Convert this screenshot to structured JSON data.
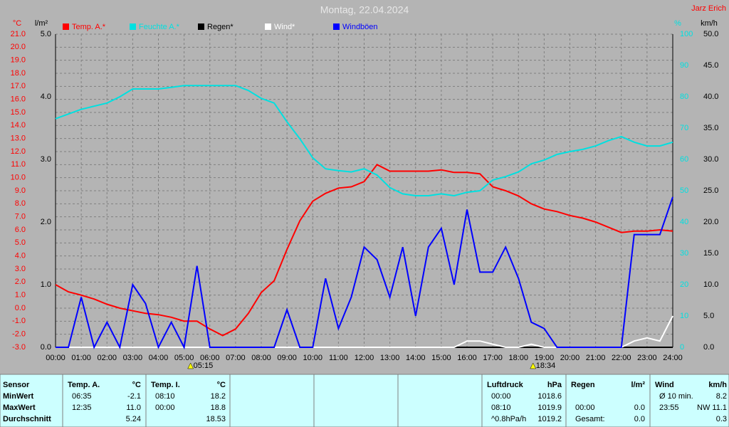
{
  "chart_data": {
    "type": "line",
    "title": "Montag, 22.04.2024",
    "author": "Jarz Erich",
    "ylabel": "°C",
    "y2label": "l/m²",
    "y3label": "%",
    "y4label": "km/h",
    "xlim": [
      0,
      24
    ],
    "xticks": [
      {
        "value": 0,
        "label": "00:00"
      },
      {
        "value": 1,
        "label": "01:00"
      },
      {
        "value": 2,
        "label": "02:00"
      },
      {
        "value": 3,
        "label": "03:00"
      },
      {
        "value": 4,
        "label": "04:00"
      },
      {
        "value": 5,
        "label": "05:00"
      },
      {
        "value": 6,
        "label": "06:00"
      },
      {
        "value": 7,
        "label": "07:00"
      },
      {
        "value": 8,
        "label": "08:00"
      },
      {
        "value": 9,
        "label": "09:00"
      },
      {
        "value": 10,
        "label": "10:00"
      },
      {
        "value": 11,
        "label": "11:00"
      },
      {
        "value": 12,
        "label": "12:00"
      },
      {
        "value": 13,
        "label": "13:00"
      },
      {
        "value": 14,
        "label": "14:00"
      },
      {
        "value": 15,
        "label": "15:00"
      },
      {
        "value": 16,
        "label": "16:00"
      },
      {
        "value": 17,
        "label": "17:00"
      },
      {
        "value": 18,
        "label": "18:00"
      },
      {
        "value": 19,
        "label": "19:00"
      },
      {
        "value": 20,
        "label": "20:00"
      },
      {
        "value": 21,
        "label": "21:00"
      },
      {
        "value": 22,
        "label": "22:00"
      },
      {
        "value": 23,
        "label": "23:00"
      },
      {
        "value": 24,
        "label": "24:00"
      }
    ],
    "ylim": [
      -3,
      21
    ],
    "yticks": [
      {
        "value": -3,
        "label": "-3.0"
      },
      {
        "value": -2,
        "label": "-2.0"
      },
      {
        "value": -1,
        "label": "-1.0"
      },
      {
        "value": 0,
        "label": "0.0"
      },
      {
        "value": 1,
        "label": "1.0"
      },
      {
        "value": 2,
        "label": "2.0"
      },
      {
        "value": 3,
        "label": "3.0"
      },
      {
        "value": 4,
        "label": "4.0"
      },
      {
        "value": 5,
        "label": "5.0"
      },
      {
        "value": 6,
        "label": "6.0"
      },
      {
        "value": 7,
        "label": "7.0"
      },
      {
        "value": 8,
        "label": "8.0"
      },
      {
        "value": 9,
        "label": "9.0"
      },
      {
        "value": 10,
        "label": "10.0"
      },
      {
        "value": 11,
        "label": "11.0"
      },
      {
        "value": 12,
        "label": "12.0"
      },
      {
        "value": 13,
        "label": "13.0"
      },
      {
        "value": 14,
        "label": "14.0"
      },
      {
        "value": 15,
        "label": "15.0"
      },
      {
        "value": 16,
        "label": "16.0"
      },
      {
        "value": 17,
        "label": "17.0"
      },
      {
        "value": 18,
        "label": "18.0"
      },
      {
        "value": 19,
        "label": "19.0"
      },
      {
        "value": 20,
        "label": "20.0"
      },
      {
        "value": 21,
        "label": "21.0"
      }
    ],
    "y2lim": [
      0,
      5
    ],
    "y2ticks": [
      {
        "value": 0,
        "label": "0.0"
      },
      {
        "value": 1,
        "label": "1.0"
      },
      {
        "value": 2,
        "label": "2.0"
      },
      {
        "value": 3,
        "label": "3.0"
      },
      {
        "value": 4,
        "label": "4.0"
      },
      {
        "value": 5,
        "label": "5.0"
      }
    ],
    "y3lim": [
      0,
      100
    ],
    "y3ticks": [
      0,
      10,
      20,
      30,
      40,
      50,
      60,
      70,
      80,
      90,
      100
    ],
    "y4lim": [
      0,
      50
    ],
    "y4ticks": [
      {
        "value": 0,
        "label": "0.0"
      },
      {
        "value": 5,
        "label": "5.0"
      },
      {
        "value": 10,
        "label": "10.0"
      },
      {
        "value": 15,
        "label": "15.0"
      },
      {
        "value": 20,
        "label": "20.0"
      },
      {
        "value": 25,
        "label": "25.0"
      },
      {
        "value": 30,
        "label": "30.0"
      },
      {
        "value": 35,
        "label": "35.0"
      },
      {
        "value": 40,
        "label": "40.0"
      },
      {
        "value": 45,
        "label": "45.0"
      },
      {
        "value": 50,
        "label": "50.0"
      }
    ],
    "grid": true,
    "x": [
      0,
      0.5,
      1,
      1.5,
      2,
      2.5,
      3,
      3.5,
      4,
      4.5,
      5,
      5.5,
      6,
      6.5,
      7,
      7.5,
      8,
      8.5,
      9,
      9.5,
      10,
      10.5,
      11,
      11.5,
      12,
      12.5,
      13,
      13.5,
      14,
      14.5,
      15,
      15.5,
      16,
      16.5,
      17,
      17.5,
      18,
      18.5,
      19,
      19.5,
      20,
      20.5,
      21,
      21.5,
      22,
      22.5,
      23,
      23.5,
      24
    ],
    "series": [
      {
        "name": "Temp. A.*",
        "color": "#ff0000",
        "axis": "y",
        "values": [
          1.8,
          1.25,
          1.0,
          0.7,
          0.3,
          0.0,
          -0.2,
          -0.4,
          -0.5,
          -0.7,
          -1.0,
          -1.0,
          -1.6,
          -2.1,
          -1.6,
          -0.4,
          1.2,
          2.1,
          4.5,
          6.7,
          8.2,
          8.8,
          9.2,
          9.3,
          9.7,
          11.0,
          10.5,
          10.5,
          10.5,
          10.5,
          10.6,
          10.4,
          10.4,
          10.3,
          9.3,
          9.0,
          8.6,
          8.0,
          7.6,
          7.4,
          7.1,
          6.9,
          6.6,
          6.2,
          5.8,
          5.9,
          5.9,
          6.0,
          5.9
        ]
      },
      {
        "name": "Feuchte A.*",
        "color": "#00e0e0",
        "axis": "y3",
        "values": [
          73,
          74.5,
          76,
          77,
          78,
          80,
          82.5,
          82.5,
          82.5,
          83,
          83.6,
          83.6,
          83.6,
          83.6,
          83.6,
          82,
          79.5,
          78,
          72,
          66.6,
          60.5,
          57,
          56.4,
          56,
          57,
          55,
          51,
          49,
          48.4,
          48.4,
          49,
          48.4,
          49.5,
          50,
          53.4,
          54.5,
          56,
          58.6,
          59.8,
          61.6,
          62.5,
          63.2,
          64.3,
          66,
          67.3,
          65.5,
          64.3,
          64.3,
          65.5
        ]
      },
      {
        "name": "Regen*",
        "color": "#000000",
        "axis": "y2",
        "values": [
          0,
          0,
          0,
          0,
          0,
          0,
          0,
          0,
          0,
          0,
          0,
          0,
          0,
          0,
          0,
          0,
          0,
          0,
          0,
          0,
          0,
          0,
          0,
          0,
          0,
          0,
          0,
          0,
          0,
          0,
          0,
          0,
          0,
          0,
          0,
          0,
          0,
          0,
          0,
          0,
          0,
          0,
          0,
          0,
          0,
          0,
          0,
          0,
          0
        ]
      },
      {
        "name": "Wind*",
        "color": "#ffffff",
        "axis": "y4",
        "values": [
          0,
          0,
          0,
          0,
          0,
          0,
          0,
          0,
          0,
          0,
          0,
          0,
          0,
          0,
          0,
          0,
          0,
          0,
          0,
          0,
          0,
          0,
          0,
          0,
          0,
          0,
          0,
          0,
          0,
          0,
          0,
          0,
          1,
          1,
          0.5,
          0,
          0,
          0.5,
          0,
          0,
          0,
          0,
          0,
          0,
          0,
          1,
          1.5,
          1,
          5
        ]
      },
      {
        "name": "Windböen",
        "color": "#0000ff",
        "axis": "y4",
        "values": [
          0,
          0,
          8,
          0,
          4,
          0,
          10,
          7,
          0,
          4,
          0,
          13,
          0,
          0,
          0,
          0,
          0,
          0,
          6,
          0,
          0,
          11,
          3,
          8,
          16,
          14,
          8,
          16,
          5,
          16,
          19,
          10,
          22,
          12,
          12,
          16,
          11,
          4,
          3,
          0,
          0,
          0,
          0,
          0,
          0,
          18,
          18,
          18,
          24
        ]
      }
    ],
    "annotations": [
      {
        "x": 5.25,
        "label": "05:15"
      },
      {
        "x": 18.5667,
        "label": "18:34"
      }
    ]
  },
  "table": {
    "blocks": [
      {
        "header": [
          "Sensor",
          null
        ],
        "rows": [
          [
            "MinWert",
            null
          ],
          [
            "MaxWert",
            null
          ],
          [
            "Durchschnitt",
            null
          ]
        ]
      },
      {
        "header": [
          "Temp. A.",
          "°C"
        ],
        "rows": [
          [
            "06:35",
            "-2.1"
          ],
          [
            "12:35",
            "11.0"
          ],
          [
            null,
            "5.24"
          ]
        ]
      },
      {
        "header": [
          "Temp. I.",
          "°C"
        ],
        "rows": [
          [
            "08:10",
            "18.2"
          ],
          [
            "00:00",
            "18.8"
          ],
          [
            null,
            "18.53"
          ]
        ]
      },
      {
        "header": [
          "Luftdruck",
          "hPa"
        ],
        "rows": [
          [
            "00:00",
            "1018.6"
          ],
          [
            "08:10",
            "1019.9"
          ],
          [
            "^0.8hPa/h",
            "1019.2"
          ]
        ]
      },
      {
        "header": [
          "Regen",
          "l/m²"
        ],
        "rows": [
          [
            null,
            null
          ],
          [
            "00:00",
            "0.0"
          ],
          [
            "Gesamt:",
            "0.0"
          ]
        ]
      },
      {
        "header": [
          "Wind",
          "km/h"
        ],
        "rows": [
          [
            "Ø 10 min.",
            "8.2"
          ],
          [
            "23:55",
            "NW 11.1"
          ],
          [
            null,
            "0.3"
          ]
        ]
      }
    ]
  }
}
